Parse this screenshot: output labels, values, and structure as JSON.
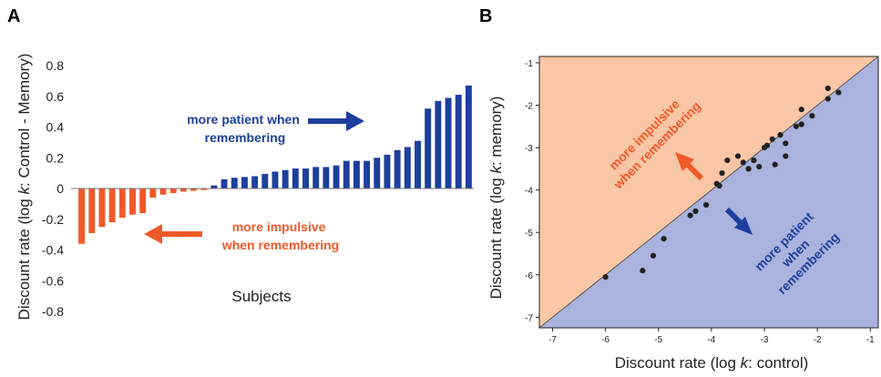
{
  "chart_data": [
    {
      "panel": "A",
      "type": "bar",
      "xlabel": "Subjects",
      "ylabel_parts": [
        "Discount rate (log ",
        "k",
        ": Control - Memory)"
      ],
      "ylim": [
        -0.8,
        0.8
      ],
      "yticks": [
        "0.8",
        "0.6",
        "0.4",
        "0.2",
        "0",
        "-0.2",
        "-0.4",
        "-0.6",
        "-0.8"
      ],
      "ytick_values": [
        0.8,
        0.6,
        0.4,
        0.2,
        0,
        -0.2,
        -0.4,
        -0.6,
        -0.8
      ],
      "grid": false,
      "colors": {
        "negative": "#f05a28",
        "positive": "#1d3f9e"
      },
      "values": [
        -0.36,
        -0.29,
        -0.25,
        -0.22,
        -0.19,
        -0.17,
        -0.16,
        -0.06,
        -0.04,
        -0.03,
        -0.02,
        -0.015,
        -0.01,
        0.02,
        0.06,
        0.07,
        0.075,
        0.08,
        0.095,
        0.11,
        0.12,
        0.13,
        0.13,
        0.14,
        0.14,
        0.15,
        0.18,
        0.18,
        0.18,
        0.2,
        0.22,
        0.25,
        0.27,
        0.31,
        0.52,
        0.57,
        0.59,
        0.61,
        0.67
      ],
      "annotations": [
        {
          "lines": [
            "more patient when",
            "remembering"
          ],
          "color": "#1d3f9e"
        },
        {
          "lines": [
            "more impulsive",
            "when remembering"
          ],
          "color": "#f05a28"
        }
      ]
    },
    {
      "panel": "B",
      "type": "scatter",
      "xlabel_parts": [
        "Discount rate (log ",
        "k",
        ": control)"
      ],
      "ylabel_parts": [
        "Discount rate (log ",
        "k",
        ": memory)"
      ],
      "xlim": [
        -7.25,
        -0.85
      ],
      "ylim": [
        -7.25,
        -0.85
      ],
      "xticks": [
        -7,
        -6,
        -5,
        -4,
        -3,
        -2,
        -1
      ],
      "yticks": [
        -7,
        -6,
        -5,
        -4,
        -3,
        -2,
        -1
      ],
      "xtick_labels": [
        "-7",
        "-6",
        "-5",
        "-4",
        "-3",
        "-2",
        "-1"
      ],
      "ytick_labels": [
        "-7",
        "-6",
        "-5",
        "-4",
        "-3",
        "-2",
        "-1"
      ],
      "regions": {
        "above_diagonal": "#f9c6a6",
        "below_diagonal": "#aab2de"
      },
      "points": [
        {
          "x": -6.0,
          "y": -6.05
        },
        {
          "x": -5.3,
          "y": -5.9
        },
        {
          "x": -5.1,
          "y": -5.55
        },
        {
          "x": -4.9,
          "y": -5.15
        },
        {
          "x": -4.4,
          "y": -4.6
        },
        {
          "x": -4.3,
          "y": -4.5
        },
        {
          "x": -4.1,
          "y": -4.35
        },
        {
          "x": -3.9,
          "y": -3.85
        },
        {
          "x": -3.85,
          "y": -3.9
        },
        {
          "x": -3.8,
          "y": -3.6
        },
        {
          "x": -3.7,
          "y": -3.3
        },
        {
          "x": -3.5,
          "y": -3.2
        },
        {
          "x": -3.4,
          "y": -3.35
        },
        {
          "x": -3.3,
          "y": -3.5
        },
        {
          "x": -3.2,
          "y": -3.3
        },
        {
          "x": -3.1,
          "y": -3.45
        },
        {
          "x": -3.0,
          "y": -3.0
        },
        {
          "x": -2.95,
          "y": -2.95
        },
        {
          "x": -2.85,
          "y": -2.8
        },
        {
          "x": -2.8,
          "y": -3.4
        },
        {
          "x": -2.7,
          "y": -2.7
        },
        {
          "x": -2.6,
          "y": -2.9
        },
        {
          "x": -2.6,
          "y": -3.2
        },
        {
          "x": -2.4,
          "y": -2.5
        },
        {
          "x": -2.3,
          "y": -2.1
        },
        {
          "x": -2.3,
          "y": -2.45
        },
        {
          "x": -2.1,
          "y": -2.25
        },
        {
          "x": -1.8,
          "y": -1.6
        },
        {
          "x": -1.8,
          "y": -1.85
        },
        {
          "x": -1.6,
          "y": -1.7
        }
      ],
      "annotations": [
        {
          "lines": [
            "more impulsive",
            "when remembering"
          ],
          "color": "#f05a28"
        },
        {
          "lines": [
            "more patient",
            "when",
            "remembering"
          ],
          "color": "#1d3f9e"
        }
      ]
    }
  ]
}
